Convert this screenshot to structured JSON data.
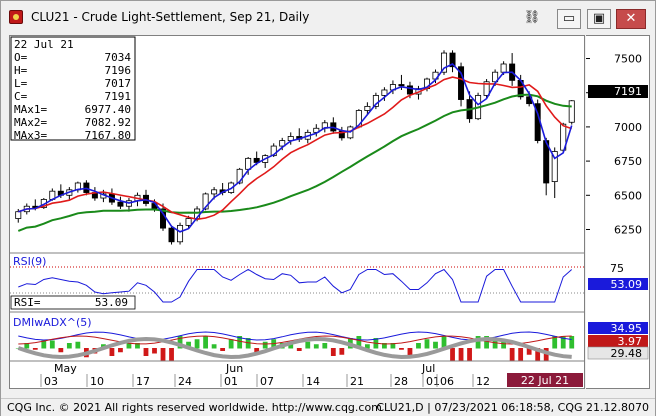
{
  "window": {
    "title": "CLU21 - Crude Light-Settlement, Sep 21, Daily",
    "controls": {
      "link": "⛓",
      "minimize": "▭",
      "maximize": "▣",
      "close": "✕"
    }
  },
  "cursor_box": {
    "date": "22 Jul 21",
    "rows": [
      {
        "label": "O=",
        "value": "7034"
      },
      {
        "label": "H=",
        "value": "7196"
      },
      {
        "label": "L=",
        "value": "7017"
      },
      {
        "label": "C=",
        "value": "7191"
      },
      {
        "label": "MAx1=",
        "value": "6977.40"
      },
      {
        "label": "MAx2=",
        "value": "7082.92"
      },
      {
        "label": "MAx3=",
        "value": "7167.80"
      }
    ]
  },
  "price_axis": {
    "ticks": [
      "7500",
      "7250",
      "7000",
      "6750",
      "6500",
      "6250"
    ],
    "last_price": "7191"
  },
  "rsi_panel": {
    "title": "RSI(9)",
    "readout_label": "RSI=",
    "readout_value": "53.09",
    "axis_tick": "75",
    "last_value": "53.09"
  },
  "dmi_panel": {
    "title": "DMIwADX^(5)",
    "values": [
      "34.95",
      "3.97",
      "29.48"
    ]
  },
  "time_axis": {
    "months": [
      "May",
      "Jun",
      "Jul"
    ],
    "days": [
      "03",
      "10",
      "17",
      "24",
      "01",
      "07",
      "14",
      "21",
      "28",
      "01",
      "06",
      "12"
    ],
    "current_date": "22 Jul 21"
  },
  "status_bar": {
    "copyright": "CQG Inc. © 2021 All rights reserved worldwide. http://www.cqg.com",
    "right": "CLU21,D | 07/23/2021 06:18:58, CQG 21.12.8070"
  },
  "colors": {
    "up_candle": "#ffffff",
    "down_candle": "#000000",
    "ma_fast": "#1a1adb",
    "ma_mid": "#e01a1a",
    "ma_slow": "#1a8a1a",
    "last_price_tag": "#000000",
    "rsi_tag": "#1a1adb",
    "dmi_plus_tag": "#1a1adb",
    "dmi_minus_tag": "#c01818",
    "adx_tag": "#e6e6e6",
    "date_tag": "#8b1a3a"
  },
  "chart_data": {
    "type": "candlestick",
    "series": [
      {
        "values": [
          [
            6330,
            6400,
            6300,
            6380
          ],
          [
            6380,
            6440,
            6360,
            6420
          ],
          [
            6420,
            6470,
            6390,
            6410
          ],
          [
            6410,
            6480,
            6400,
            6470
          ],
          [
            6470,
            6550,
            6460,
            6530
          ],
          [
            6530,
            6580,
            6480,
            6500
          ],
          [
            6500,
            6560,
            6470,
            6540
          ],
          [
            6540,
            6600,
            6520,
            6590
          ],
          [
            6590,
            6610,
            6500,
            6520
          ],
          [
            6520,
            6560,
            6460,
            6480
          ],
          [
            6480,
            6540,
            6450,
            6510
          ],
          [
            6510,
            6550,
            6430,
            6450
          ],
          [
            6450,
            6490,
            6400,
            6420
          ],
          [
            6420,
            6480,
            6380,
            6460
          ],
          [
            6460,
            6520,
            6420,
            6500
          ],
          [
            6500,
            6540,
            6420,
            6440
          ],
          [
            6440,
            6470,
            6380,
            6400
          ],
          [
            6400,
            6440,
            6240,
            6260
          ],
          [
            6260,
            6280,
            6140,
            6160
          ],
          [
            6160,
            6300,
            6140,
            6280
          ],
          [
            6280,
            6350,
            6260,
            6330
          ],
          [
            6330,
            6420,
            6310,
            6400
          ],
          [
            6400,
            6520,
            6390,
            6510
          ],
          [
            6510,
            6560,
            6470,
            6540
          ],
          [
            6540,
            6590,
            6500,
            6520
          ],
          [
            6520,
            6600,
            6510,
            6590
          ],
          [
            6590,
            6700,
            6580,
            6690
          ],
          [
            6690,
            6780,
            6650,
            6770
          ],
          [
            6770,
            6820,
            6720,
            6740
          ],
          [
            6740,
            6800,
            6700,
            6790
          ],
          [
            6790,
            6880,
            6780,
            6860
          ],
          [
            6860,
            6920,
            6830,
            6900
          ],
          [
            6900,
            6960,
            6870,
            6930
          ],
          [
            6930,
            6990,
            6890,
            6910
          ],
          [
            6910,
            6980,
            6880,
            6960
          ],
          [
            6960,
            7020,
            6930,
            6990
          ],
          [
            6990,
            7050,
            6960,
            7030
          ],
          [
            7030,
            7070,
            6950,
            6970
          ],
          [
            6970,
            7000,
            6900,
            6920
          ],
          [
            6920,
            7010,
            6910,
            7000
          ],
          [
            7000,
            7130,
            6990,
            7120
          ],
          [
            7120,
            7180,
            7090,
            7150
          ],
          [
            7150,
            7250,
            7130,
            7230
          ],
          [
            7230,
            7290,
            7190,
            7270
          ],
          [
            7270,
            7340,
            7240,
            7310
          ],
          [
            7310,
            7380,
            7270,
            7300
          ],
          [
            7300,
            7330,
            7210,
            7240
          ],
          [
            7240,
            7300,
            7200,
            7280
          ],
          [
            7280,
            7360,
            7260,
            7350
          ],
          [
            7350,
            7420,
            7320,
            7400
          ],
          [
            7400,
            7560,
            7380,
            7540
          ],
          [
            7540,
            7560,
            7400,
            7440
          ],
          [
            7440,
            7470,
            7150,
            7200
          ],
          [
            7200,
            7260,
            7030,
            7060
          ],
          [
            7060,
            7250,
            7050,
            7230
          ],
          [
            7230,
            7350,
            7210,
            7330
          ],
          [
            7330,
            7420,
            7300,
            7400
          ],
          [
            7400,
            7480,
            7380,
            7460
          ],
          [
            7460,
            7540,
            7300,
            7340
          ],
          [
            7340,
            7380,
            7200,
            7220
          ],
          [
            7220,
            7260,
            7150,
            7170
          ],
          [
            7170,
            7200,
            6880,
            6900
          ],
          [
            6900,
            6920,
            6500,
            6590
          ],
          [
            6600,
            6850,
            6480,
            6820
          ],
          [
            6830,
            7030,
            6810,
            7020
          ],
          [
            7034,
            7196,
            7017,
            7191
          ]
        ]
      }
    ],
    "ylim": [
      6100,
      7650
    ],
    "y_ticks": [
      7500,
      7250,
      7000,
      6750,
      6500,
      6250
    ]
  }
}
